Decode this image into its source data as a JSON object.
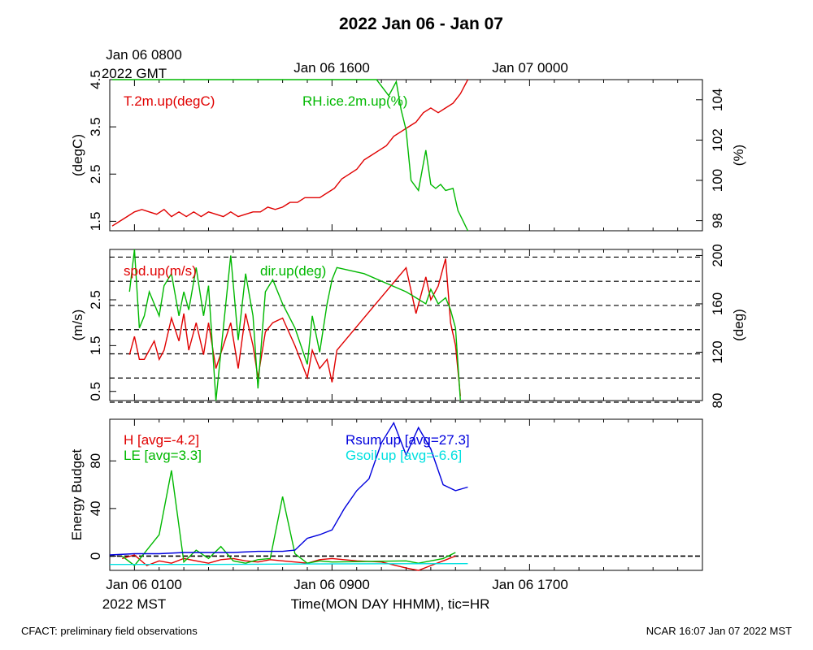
{
  "title": "2022 Jan 06 - Jan 07",
  "footer_left": "CFACT: preliminary field observations",
  "footer_right": "NCAR 16:07 Jan 07 2022 MST",
  "top_axis": {
    "labels": [
      "Jan 06 0800",
      "Jan 06 1600",
      "Jan 07 0000"
    ],
    "tz_label": "2022 GMT"
  },
  "bottom_axis": {
    "labels": [
      "Jan 06 0100",
      "Jan 06 0900",
      "Jan 06 1700"
    ],
    "tz_label": "2022 MST",
    "xlabel": "Time(MON DAY HHMM), tic=HR"
  },
  "colors": {
    "red": "#e00000",
    "green": "#00b800",
    "blue": "#0000dd",
    "cyan": "#00e0e0"
  },
  "chart_data": [
    {
      "type": "line",
      "panel": "temperature-rh",
      "x_unit": "hours since Jan 06 0000 MST",
      "xlim": [
        0,
        24
      ],
      "ylabel_left": "(degC)",
      "ylabel_right": "(%)",
      "ylim_left": [
        1.3,
        4.5
      ],
      "ylim_right": [
        97.5,
        105
      ],
      "yticks_left": [
        1.5,
        2.5,
        3.5,
        4.5
      ],
      "yticks_right": [
        98,
        100,
        102,
        104
      ],
      "legend": [
        "T.2m.up(degC)",
        "RH.ice.2m.up(%)"
      ],
      "series": [
        {
          "name": "T.2m.up(degC)",
          "axis": "left",
          "color": "#e00000",
          "x": [
            0.1,
            0.4,
            0.7,
            1.0,
            1.3,
            1.6,
            1.9,
            2.2,
            2.5,
            2.8,
            3.1,
            3.4,
            3.7,
            4.0,
            4.3,
            4.6,
            4.9,
            5.2,
            5.5,
            5.8,
            6.1,
            6.4,
            6.7,
            7.0,
            7.3,
            7.6,
            7.9,
            8.2,
            8.5,
            8.8,
            9.1,
            9.4,
            9.7,
            10.0,
            10.3,
            10.6,
            10.9,
            11.2,
            11.5,
            11.8,
            12.1,
            12.4,
            12.7,
            13.0,
            13.3,
            13.6,
            13.9,
            14.2,
            14.5
          ],
          "values": [
            1.4,
            1.5,
            1.6,
            1.7,
            1.75,
            1.7,
            1.65,
            1.75,
            1.6,
            1.7,
            1.6,
            1.7,
            1.6,
            1.7,
            1.65,
            1.6,
            1.7,
            1.6,
            1.65,
            1.7,
            1.7,
            1.8,
            1.75,
            1.8,
            1.9,
            1.9,
            2.0,
            2.0,
            2.0,
            2.1,
            2.2,
            2.4,
            2.5,
            2.6,
            2.8,
            2.9,
            3.0,
            3.1,
            3.3,
            3.4,
            3.5,
            3.6,
            3.8,
            3.9,
            3.8,
            3.9,
            4.0,
            4.2,
            4.5
          ]
        },
        {
          "name": "RH.ice.2m.up(%)",
          "axis": "right",
          "color": "#00b800",
          "x": [
            0.1,
            1.0,
            2.0,
            3.0,
            4.0,
            5.0,
            6.0,
            7.0,
            8.0,
            9.0,
            10.0,
            10.8,
            11.3,
            11.6,
            11.8,
            12.0,
            12.2,
            12.5,
            12.8,
            13.0,
            13.2,
            13.4,
            13.6,
            13.9,
            14.1,
            14.3,
            14.5
          ],
          "values": [
            105,
            105,
            105,
            105,
            105,
            105,
            105,
            105,
            105,
            105,
            105,
            105,
            104.2,
            104.9,
            103.5,
            102.5,
            100,
            99.5,
            101.5,
            99.8,
            99.6,
            99.8,
            99.5,
            99.6,
            98.5,
            98,
            97.5
          ]
        }
      ]
    },
    {
      "type": "line",
      "panel": "wind",
      "x_unit": "hours since Jan 06 0000 MST",
      "xlim": [
        0,
        24
      ],
      "ylabel_left": "(m/s)",
      "ylabel_right": "(deg)",
      "ylim_left": [
        0.3,
        3.6
      ],
      "ylim_right": [
        80,
        205
      ],
      "yticks_left": [
        0.5,
        1.5,
        2.5
      ],
      "yticks_right": [
        80,
        120,
        160,
        200
      ],
      "dashed_gridlines_right": [
        80,
        100,
        120,
        140,
        160,
        180,
        200
      ],
      "legend": [
        "spd.up(m/s)",
        "dir.up(deg)"
      ],
      "series": [
        {
          "name": "spd.up(m/s)",
          "axis": "left",
          "color": "#e00000",
          "x": [
            0.8,
            1.0,
            1.2,
            1.4,
            1.6,
            1.8,
            2.0,
            2.2,
            2.5,
            2.8,
            3.0,
            3.2,
            3.5,
            3.8,
            4.0,
            4.3,
            4.6,
            4.9,
            5.2,
            5.5,
            5.8,
            6.0,
            6.3,
            6.6,
            7.0,
            7.5,
            8.0,
            8.2,
            8.5,
            8.8,
            9.0,
            9.2,
            12.0,
            12.4,
            12.8,
            13.0,
            13.3,
            13.6,
            13.8,
            14.0,
            14.2
          ],
          "values": [
            1.3,
            1.7,
            1.2,
            1.2,
            1.4,
            1.6,
            1.2,
            1.4,
            2.1,
            1.6,
            2.2,
            1.4,
            2.0,
            1.3,
            2.0,
            1.0,
            1.5,
            2.0,
            1.0,
            2.2,
            1.5,
            0.8,
            1.8,
            2.0,
            2.1,
            1.5,
            0.8,
            1.4,
            1.0,
            1.2,
            0.7,
            1.4,
            3.2,
            2.2,
            3.0,
            2.5,
            2.8,
            3.4,
            2.0,
            1.5,
            0.4
          ]
        },
        {
          "name": "dir.up(deg)",
          "axis": "right",
          "color": "#00b800",
          "x": [
            0.8,
            1.0,
            1.2,
            1.4,
            1.6,
            1.8,
            2.0,
            2.2,
            2.5,
            2.8,
            3.0,
            3.2,
            3.5,
            3.8,
            4.0,
            4.3,
            4.6,
            4.9,
            5.2,
            5.5,
            5.8,
            6.0,
            6.3,
            6.6,
            7.0,
            7.5,
            8.0,
            8.2,
            8.5,
            8.8,
            9.0,
            9.2,
            10.3,
            12.0,
            12.4,
            12.8,
            13.0,
            13.3,
            13.6,
            13.8,
            14.0,
            14.2
          ],
          "values": [
            170,
            205,
            140,
            150,
            170,
            160,
            150,
            175,
            185,
            150,
            170,
            155,
            190,
            150,
            175,
            80,
            140,
            200,
            130,
            185,
            150,
            90,
            170,
            180,
            160,
            140,
            110,
            150,
            120,
            160,
            180,
            190,
            185,
            170,
            165,
            160,
            172,
            160,
            165,
            155,
            140,
            80
          ]
        }
      ]
    },
    {
      "type": "line",
      "panel": "energy-budget",
      "x_unit": "hours since Jan 06 0000 MST",
      "xlim": [
        0,
        24
      ],
      "ylabel_left": "Energy Budget",
      "ylim_left": [
        -12,
        115
      ],
      "yticks_left": [
        0,
        40,
        80
      ],
      "zero_line": true,
      "legend": [
        "H [avg=-4.2]",
        "LE [avg=3.3]",
        "Rsum.up [avg=27.3]",
        "Gsoil.up [avg=-6.6]"
      ],
      "series": [
        {
          "name": "H [avg=-4.2]",
          "color": "#e00000",
          "x": [
            0.5,
            1.0,
            1.5,
            2.0,
            2.5,
            3.0,
            3.5,
            4.0,
            4.5,
            5.0,
            5.5,
            6.0,
            6.5,
            7.0,
            7.5,
            8.0,
            8.5,
            9.0,
            10.0,
            11.0,
            12.0,
            12.5,
            13.0,
            13.5,
            14.0
          ],
          "values": [
            -2,
            1,
            -8,
            -4,
            -6,
            -2,
            -4,
            -6,
            -3,
            -2,
            -4,
            -5,
            -3,
            -4,
            -5,
            -6,
            -3,
            -2,
            -4,
            -5,
            -10,
            -12,
            -8,
            -4,
            0
          ]
        },
        {
          "name": "LE [avg=3.3]",
          "color": "#00b800",
          "x": [
            0.5,
            1.0,
            1.5,
            2.0,
            2.5,
            3.0,
            3.5,
            4.0,
            4.5,
            5.0,
            5.5,
            6.0,
            6.5,
            7.0,
            7.5,
            8.0,
            8.5,
            9.0,
            12.0,
            12.5,
            13.0,
            13.5,
            14.0
          ],
          "values": [
            0,
            -8,
            5,
            18,
            72,
            -5,
            5,
            -2,
            8,
            -4,
            -6,
            -3,
            -2,
            50,
            2,
            -6,
            -4,
            -5,
            -4,
            -6,
            -4,
            -2,
            3
          ]
        },
        {
          "name": "Rsum.up [avg=27.3]",
          "color": "#0000dd",
          "x": [
            0,
            1,
            2,
            3,
            4,
            5,
            6,
            7,
            7.5,
            8,
            8.5,
            9,
            9.5,
            10,
            10.5,
            11,
            11.5,
            12,
            12.5,
            13,
            13.5,
            14,
            14.5
          ],
          "values": [
            1,
            2,
            2,
            3,
            3,
            3,
            4,
            4,
            5,
            15,
            18,
            22,
            40,
            55,
            65,
            95,
            112,
            85,
            108,
            90,
            60,
            55,
            58
          ]
        },
        {
          "name": "Gsoil.up [avg=-6.6]",
          "color": "#00e0e0",
          "x": [
            0,
            2,
            4,
            6,
            8,
            10,
            12,
            14.5
          ],
          "values": [
            -7,
            -7,
            -7,
            -6.8,
            -6.6,
            -6.5,
            -6.4,
            -6.3
          ]
        }
      ]
    }
  ]
}
